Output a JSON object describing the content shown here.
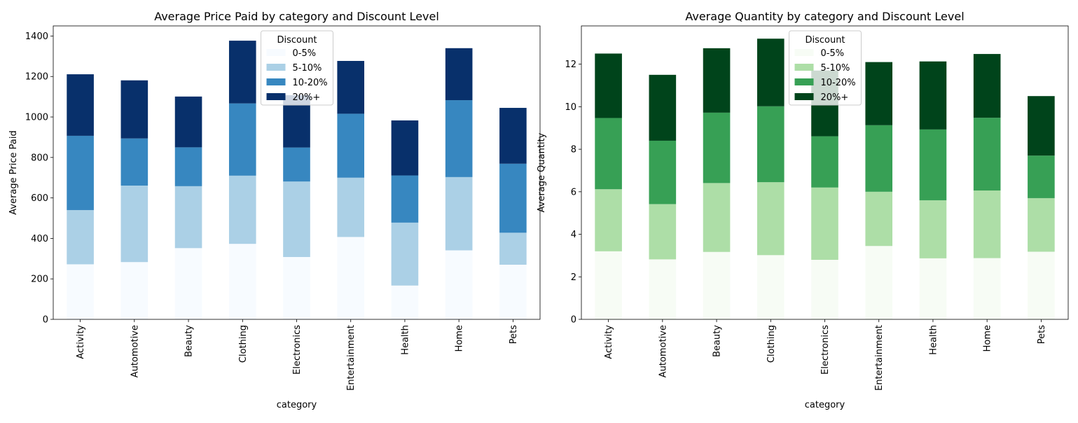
{
  "chart_data": [
    {
      "type": "bar",
      "stacked": true,
      "title": "Average Price Paid by category and Discount Level",
      "xlabel": "category",
      "ylabel": "Average Price Paid",
      "ylim": [
        0,
        1450
      ],
      "yticks": [
        0,
        200,
        400,
        600,
        800,
        1000,
        1200,
        1400
      ],
      "grid": false,
      "legend": {
        "title": "Discount",
        "placement": "top-center"
      },
      "categories": [
        "Activity",
        "Automotive",
        "Beauty",
        "Clothing",
        "Electronics",
        "Entertainment",
        "Health",
        "Home",
        "Pets"
      ],
      "series": [
        {
          "name": "0-5%",
          "color": "#f7fbff",
          "values": [
            272,
            283,
            352,
            373,
            308,
            407,
            167,
            341,
            270
          ]
        },
        {
          "name": "5-10%",
          "color": "#abd0e6",
          "values": [
            268,
            378,
            306,
            337,
            373,
            293,
            311,
            362,
            158
          ]
        },
        {
          "name": "10-20%",
          "color": "#3787c0",
          "values": [
            367,
            233,
            192,
            357,
            168,
            316,
            233,
            380,
            341
          ]
        },
        {
          "name": "20%+",
          "color": "#08306b",
          "values": [
            304,
            287,
            251,
            310,
            259,
            261,
            272,
            257,
            276
          ]
        }
      ]
    },
    {
      "type": "bar",
      "stacked": true,
      "title": "Average Quantity by category and Discount Level",
      "xlabel": "category",
      "ylabel": "Average Quantity",
      "ylim": [
        0,
        13.8
      ],
      "yticks": [
        0,
        2,
        4,
        6,
        8,
        10,
        12
      ],
      "grid": false,
      "legend": {
        "title": "Discount",
        "placement": "top-center"
      },
      "categories": [
        "Activity",
        "Automotive",
        "Beauty",
        "Clothing",
        "Electronics",
        "Entertainment",
        "Health",
        "Home",
        "Pets"
      ],
      "series": [
        {
          "name": "0-5%",
          "color": "#f7fcf5",
          "values": [
            3.2,
            2.82,
            3.17,
            3.02,
            2.8,
            3.45,
            2.87,
            2.88,
            3.18
          ]
        },
        {
          "name": "5-10%",
          "color": "#addea7",
          "values": [
            2.92,
            2.6,
            3.24,
            3.43,
            3.4,
            2.55,
            2.73,
            3.18,
            2.52
          ]
        },
        {
          "name": "10-20%",
          "color": "#37a055",
          "values": [
            3.35,
            2.98,
            3.31,
            3.57,
            2.41,
            3.13,
            3.33,
            3.42,
            2.0
          ]
        },
        {
          "name": "20%+",
          "color": "#00441b",
          "values": [
            3.03,
            3.1,
            3.03,
            3.18,
            3.09,
            2.97,
            3.2,
            3.0,
            2.8
          ]
        }
      ]
    }
  ]
}
